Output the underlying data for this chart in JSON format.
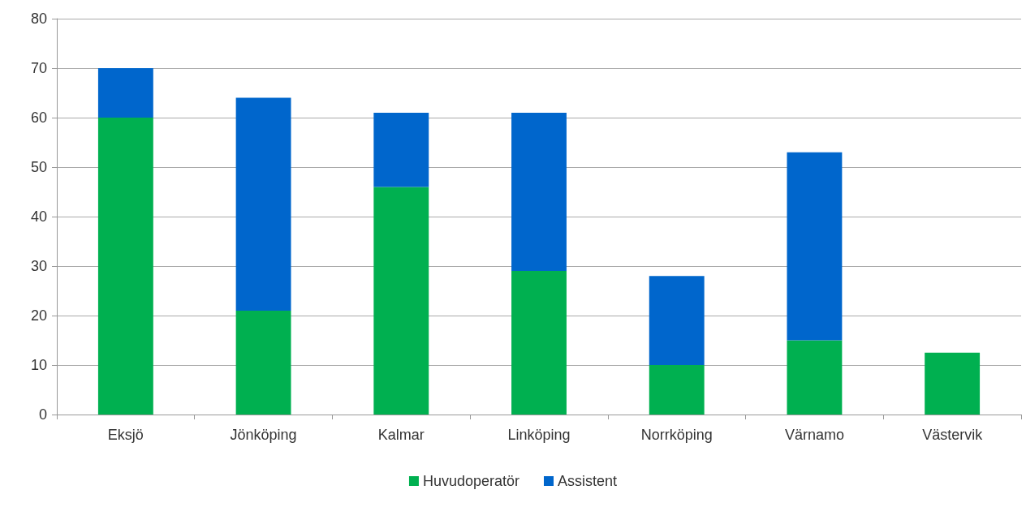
{
  "chart_data": {
    "type": "bar",
    "stacked": true,
    "categories": [
      "Eksjö",
      "Jönköping",
      "Kalmar",
      "Linköping",
      "Norrköping",
      "Värnamo",
      "Västervik"
    ],
    "series": [
      {
        "name": "Huvudoperatör",
        "color": "#00b050",
        "values": [
          60,
          21,
          46,
          29,
          10,
          15,
          12.5
        ]
      },
      {
        "name": "Assistent",
        "color": "#0066cc",
        "values": [
          10,
          43,
          15,
          32,
          18,
          38,
          null
        ]
      }
    ],
    "ylim": [
      0,
      80
    ],
    "yticks": [
      0,
      10,
      20,
      30,
      40,
      50,
      60,
      70,
      80
    ],
    "grid": "y",
    "legend": "bottom"
  }
}
